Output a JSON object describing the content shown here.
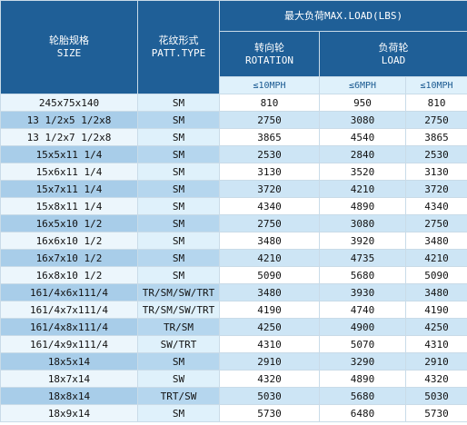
{
  "header": {
    "size_cn": "轮胎规格",
    "size_en": "SIZE",
    "patt_cn": "花纹形式",
    "patt_en": "PATT.TYPE",
    "max_load": "最大负荷MAX.LOAD(LBS)",
    "rotation_cn": "转向轮",
    "rotation_en": "ROTATION",
    "load_cn": "负荷轮",
    "load_en": "LOAD",
    "speed_rot": "≤10MPH",
    "speed_load_6": "≤6MPH",
    "speed_load_10": "≤10MPH"
  },
  "rows": [
    {
      "size": "245x75x140",
      "patt": "SM",
      "rot": "810",
      "load6": "950",
      "load10": "810"
    },
    {
      "size": "13 1/2x5 1/2x8",
      "patt": "SM",
      "rot": "2750",
      "load6": "3080",
      "load10": "2750"
    },
    {
      "size": "13 1/2x7 1/2x8",
      "patt": "SM",
      "rot": "3865",
      "load6": "4540",
      "load10": "3865"
    },
    {
      "size": "15x5x11 1/4",
      "patt": "SM",
      "rot": "2530",
      "load6": "2840",
      "load10": "2530"
    },
    {
      "size": "15x6x11 1/4",
      "patt": "SM",
      "rot": "3130",
      "load6": "3520",
      "load10": "3130"
    },
    {
      "size": "15x7x11 1/4",
      "patt": "SM",
      "rot": "3720",
      "load6": "4210",
      "load10": "3720"
    },
    {
      "size": "15x8x11 1/4",
      "patt": "SM",
      "rot": "4340",
      "load6": "4890",
      "load10": "4340"
    },
    {
      "size": "16x5x10 1/2",
      "patt": "SM",
      "rot": "2750",
      "load6": "3080",
      "load10": "2750"
    },
    {
      "size": "16x6x10 1/2",
      "patt": "SM",
      "rot": "3480",
      "load6": "3920",
      "load10": "3480"
    },
    {
      "size": "16x7x10 1/2",
      "patt": "SM",
      "rot": "4210",
      "load6": "4735",
      "load10": "4210"
    },
    {
      "size": "16x8x10 1/2",
      "patt": "SM",
      "rot": "5090",
      "load6": "5680",
      "load10": "5090"
    },
    {
      "size": "161/4x6x111/4",
      "patt": "TR/SM/SW/TRT",
      "rot": "3480",
      "load6": "3930",
      "load10": "3480"
    },
    {
      "size": "161/4x7x111/4",
      "patt": "TR/SM/SW/TRT",
      "rot": "4190",
      "load6": "4740",
      "load10": "4190"
    },
    {
      "size": "161/4x8x111/4",
      "patt": "TR/SM",
      "rot": "4250",
      "load6": "4900",
      "load10": "4250"
    },
    {
      "size": "161/4x9x111/4",
      "patt": "SW/TRT",
      "rot": "4310",
      "load6": "5070",
      "load10": "4310"
    },
    {
      "size": "18x5x14",
      "patt": "SM",
      "rot": "2910",
      "load6": "3290",
      "load10": "2910"
    },
    {
      "size": "18x7x14",
      "patt": "SW",
      "rot": "4320",
      "load6": "4890",
      "load10": "4320"
    },
    {
      "size": "18x8x14",
      "patt": "TRT/SW",
      "rot": "5030",
      "load6": "5680",
      "load10": "5030"
    },
    {
      "size": "18x9x14",
      "patt": "SM",
      "rot": "5730",
      "load6": "6480",
      "load10": "5730"
    }
  ]
}
